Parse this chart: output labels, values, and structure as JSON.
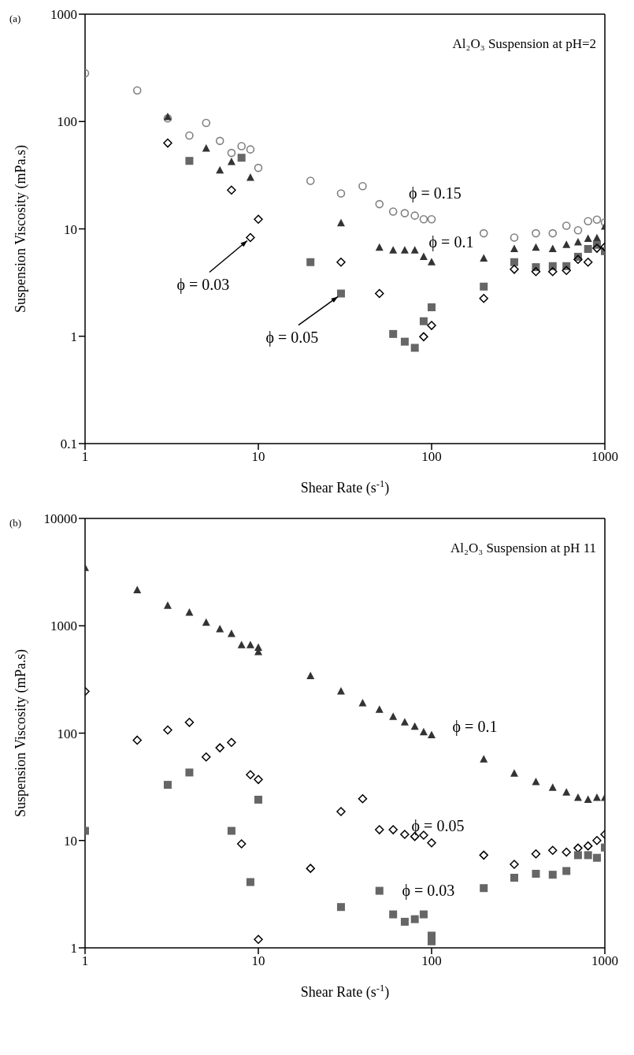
{
  "chart_data": [
    {
      "type": "scatter",
      "title": "Al₂O₃ Suspension at pH=2",
      "xlabel": "Shear Rate  (s$^{-1}$)",
      "ylabel": "Suspension Viscosity  (mPa.s)",
      "log": "xy",
      "grid": false,
      "legend": false,
      "xlim": [
        1,
        1000
      ],
      "xticks": [
        1,
        10,
        100,
        1000
      ],
      "ylim": [
        0.1,
        1000
      ],
      "yticks": [
        0.1,
        1,
        10,
        100,
        1000
      ],
      "annotations": [
        "(a)",
        {
          "text": "ϕ = 0.03",
          "x": 9,
          "y": 8.3
        },
        {
          "text": "ϕ = 0.05",
          "x": 30,
          "y": 2.5
        }
      ],
      "series": [
        {
          "name": "ϕ = 0.15",
          "color": "#808080",
          "marker": "circle",
          "x": [
            1,
            2,
            3,
            4,
            5,
            6,
            7,
            8,
            9,
            10,
            20,
            30,
            40,
            50,
            60,
            70,
            80,
            90,
            100,
            200,
            300,
            400,
            500,
            600,
            700,
            800,
            900,
            1000
          ],
          "values": [
            282,
            195,
            107,
            74,
            97,
            66,
            51,
            59,
            55,
            37,
            28,
            21.4,
            25,
            17,
            14.5,
            14,
            13.3,
            12.3,
            12.3,
            9.1,
            8.3,
            9.1,
            9.1,
            10.7,
            9.7,
            11.8,
            12.2,
            11.5
          ]
        },
        {
          "name": "ϕ = 0.1",
          "color": "#333333",
          "marker": "triangle",
          "x": [
            3,
            5,
            6,
            7,
            9,
            30,
            50,
            60,
            70,
            80,
            90,
            100,
            200,
            300,
            400,
            500,
            600,
            700,
            800,
            900,
            1000
          ],
          "values": [
            110,
            56,
            35,
            42,
            30,
            11.3,
            6.7,
            6.3,
            6.3,
            6.3,
            5.5,
            4.9,
            5.3,
            6.5,
            6.7,
            6.5,
            7.1,
            7.5,
            8.1,
            8.2,
            10.5
          ]
        },
        {
          "color": "#666666",
          "marker": "square",
          "x": [
            4,
            8,
            20,
            30,
            60,
            70,
            80,
            90,
            100,
            200,
            300,
            400,
            500,
            600,
            700,
            800,
            900,
            1000
          ],
          "values": [
            43,
            46,
            4.9,
            2.5,
            1.05,
            0.89,
            0.78,
            1.38,
            1.86,
            2.9,
            4.9,
            4.4,
            4.5,
            4.5,
            5.5,
            6.5,
            7.1,
            6.2
          ]
        },
        {
          "color": "#000000",
          "marker": "diamond",
          "x": [
            3,
            7,
            9,
            10,
            30,
            50,
            90,
            100,
            200,
            300,
            400,
            500,
            600,
            700,
            800,
            900,
            1000
          ],
          "values": [
            63,
            23,
            8.3,
            12.3,
            4.9,
            2.5,
            0.99,
            1.26,
            2.25,
            4.2,
            4,
            4,
            4.1,
            5.2,
            4.9,
            6.6,
            6.8
          ]
        }
      ]
    },
    {
      "type": "scatter",
      "title": "Al₂O₃ Suspension at pH 11",
      "xlabel": "Shear Rate  (s$^{-1}$)",
      "ylabel": "Suspension Viscosity  (mPa.s)",
      "log": "xy",
      "grid": false,
      "legend": false,
      "xlim": [
        1,
        1000
      ],
      "xticks": [
        1,
        10,
        100,
        1000
      ],
      "ylim": [
        1,
        10000
      ],
      "yticks": [
        1,
        10,
        100,
        1000,
        10000
      ],
      "annotations": [
        "(b)"
      ],
      "series": [
        {
          "name": "ϕ = 0.1",
          "color": "#333333",
          "marker": "triangle",
          "x": [
            1,
            2,
            3,
            4,
            5,
            6,
            7,
            8,
            9,
            10,
            10,
            20,
            30,
            40,
            50,
            60,
            70,
            80,
            90,
            100,
            200,
            300,
            400,
            500,
            600,
            700,
            800,
            900,
            1000
          ],
          "values": [
            3470,
            2150,
            1540,
            1330,
            1070,
            930,
            840,
            660,
            660,
            625,
            570,
            340,
            245,
            190,
            165,
            142,
            126,
            115,
            102,
            96,
            57,
            42,
            35,
            31,
            28,
            25,
            24,
            25,
            25
          ]
        },
        {
          "name": "ϕ = 0.05",
          "color": "#000000",
          "marker": "diamond",
          "x": [
            1,
            2,
            3,
            4,
            5,
            6,
            7,
            8,
            9,
            10,
            10,
            20,
            30,
            40,
            50,
            60,
            70,
            80,
            90,
            100,
            200,
            300,
            400,
            500,
            600,
            700,
            800,
            900,
            1000
          ],
          "values": [
            245,
            86,
            107,
            126,
            60,
            73,
            82,
            9.3,
            41,
            37,
            1.2,
            5.5,
            18.6,
            24.5,
            12.6,
            12.6,
            11.4,
            10.9,
            11.2,
            9.5,
            7.3,
            6,
            7.5,
            8.1,
            7.8,
            8.5,
            8.9,
            10,
            11.4
          ]
        },
        {
          "name": "ϕ = 0.03",
          "color": "#666666",
          "marker": "square",
          "x": [
            1,
            3,
            4,
            7,
            9,
            10,
            30,
            50,
            60,
            70,
            80,
            90,
            100,
            100,
            200,
            300,
            400,
            500,
            600,
            700,
            800,
            900,
            1000
          ],
          "values": [
            12.3,
            33,
            43,
            12.3,
            4.1,
            24,
            2.4,
            3.4,
            2.05,
            1.75,
            1.85,
            2.05,
            1.3,
            1.15,
            3.6,
            4.5,
            4.9,
            4.8,
            5.2,
            7.3,
            7.3,
            6.9,
            8.6
          ]
        }
      ]
    }
  ]
}
